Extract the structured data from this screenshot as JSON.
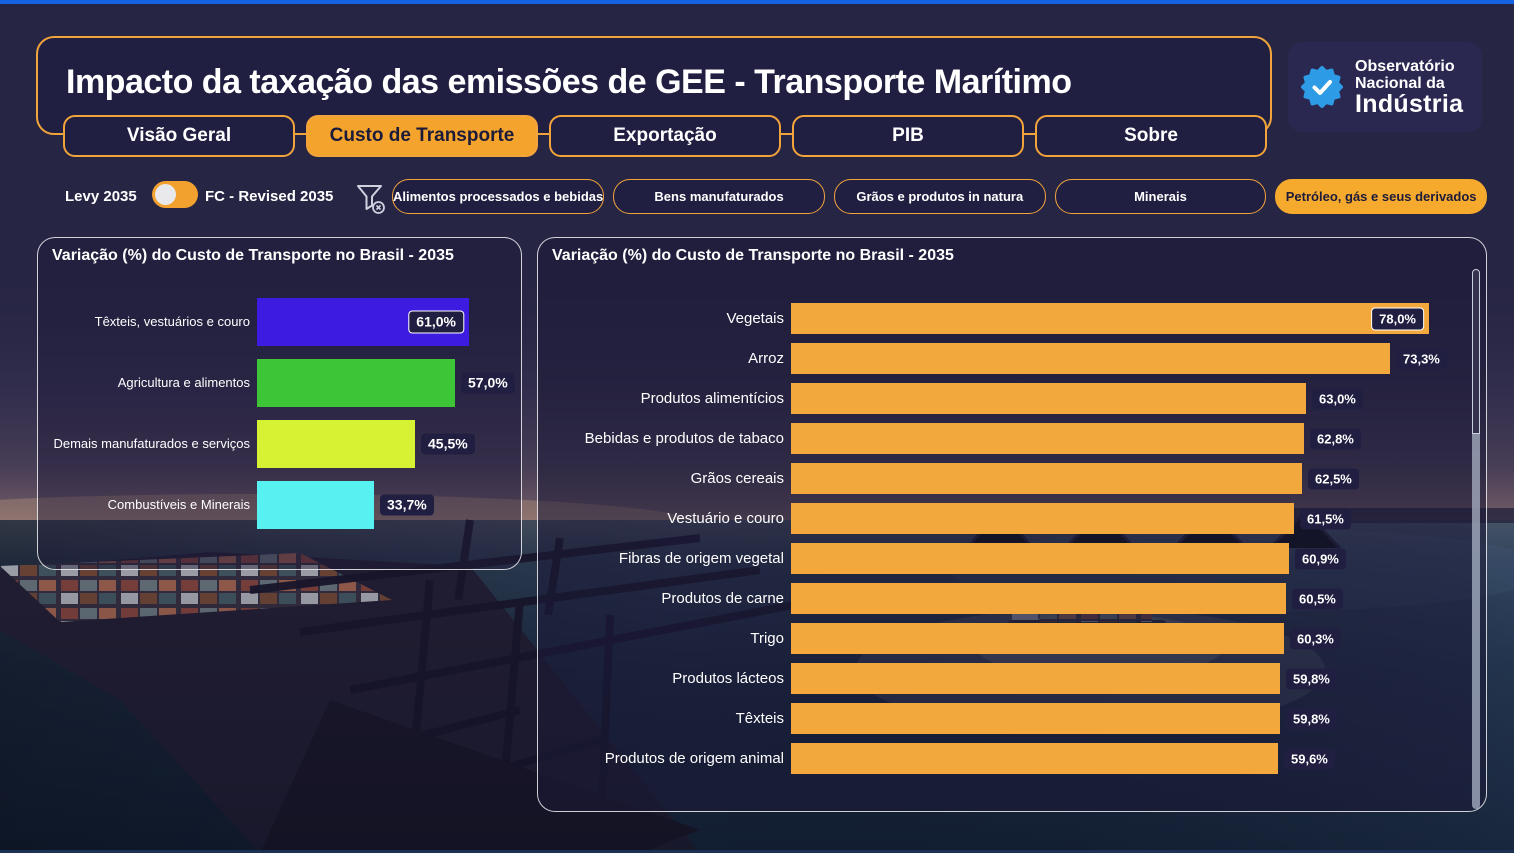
{
  "page": {
    "top_strip_color": "#1563E2",
    "background_color": "#272544",
    "accent_color": "#F2A43C"
  },
  "header": {
    "title": "Impacto da taxação das emissões de GEE - Transporte Marítimo",
    "logo": {
      "icon": "verified-badge-icon",
      "icon_color": "#2E9BE6",
      "lines": [
        "Observatório",
        "Nacional da",
        "Indústria"
      ]
    }
  },
  "tabs": [
    {
      "label": "Visão Geral",
      "active": false
    },
    {
      "label": "Custo de Transporte",
      "active": true
    },
    {
      "label": "Exportação",
      "active": false
    },
    {
      "label": "PIB",
      "active": false
    },
    {
      "label": "Sobre",
      "active": false
    }
  ],
  "controls": {
    "toggle": {
      "left_label": "Levy 2035",
      "right_label": "FC - Revised 2035",
      "state": "left",
      "color": "#F2A12E"
    },
    "filter_clear_icon": "funnel-clear-icon",
    "filters": [
      {
        "label": "Alimentos processados e bebidas",
        "selected": false
      },
      {
        "label": "Bens manufaturados",
        "selected": false
      },
      {
        "label": "Grãos e produtos in natura",
        "selected": false
      },
      {
        "label": "Minerais",
        "selected": false
      },
      {
        "label": "Petróleo, gás e seus derivados",
        "selected": true
      }
    ]
  },
  "chart_data": [
    {
      "type": "bar",
      "orientation": "horizontal",
      "title": "Variação (%) do Custo de Transporte no Brasil - 2035",
      "categories": [
        "Têxteis, vestuários e couro",
        "Agricultura e alimentos",
        "Demais manufaturados e serviços",
        "Combustíveis e Minerais"
      ],
      "values": [
        61.0,
        57.0,
        45.5,
        33.7
      ],
      "value_labels": [
        "61,0%",
        "57,0%",
        "45,5%",
        "33,7%"
      ],
      "bar_colors": [
        "#3D1BE0",
        "#3EC437",
        "#D7F133",
        "#57F1F1"
      ],
      "xlim": [
        0,
        65
      ],
      "grid": false,
      "legend": "none"
    },
    {
      "type": "bar",
      "orientation": "horizontal",
      "title": "Variação (%) do Custo de Transporte no Brasil - 2035",
      "categories": [
        "Vegetais",
        "Arroz",
        "Produtos alimentícios",
        "Bebidas e produtos de tabaco",
        "Grãos cereais",
        "Vestuário e couro",
        "Fibras de origem vegetal",
        "Produtos de carne",
        "Trigo",
        "Produtos lácteos",
        "Têxteis",
        "Produtos de origem animal"
      ],
      "values": [
        78.0,
        73.3,
        63.0,
        62.8,
        62.5,
        61.5,
        60.9,
        60.5,
        60.3,
        59.8,
        59.8,
        59.6
      ],
      "value_labels": [
        "78,0%",
        "73,3%",
        "63,0%",
        "62,8%",
        "62,5%",
        "61,5%",
        "60,9%",
        "60,5%",
        "60,3%",
        "59,8%",
        "59,8%",
        "59,6%"
      ],
      "bar_color": "#F2A83C",
      "xlim": [
        0,
        80
      ],
      "grid": false,
      "legend": "none"
    }
  ]
}
